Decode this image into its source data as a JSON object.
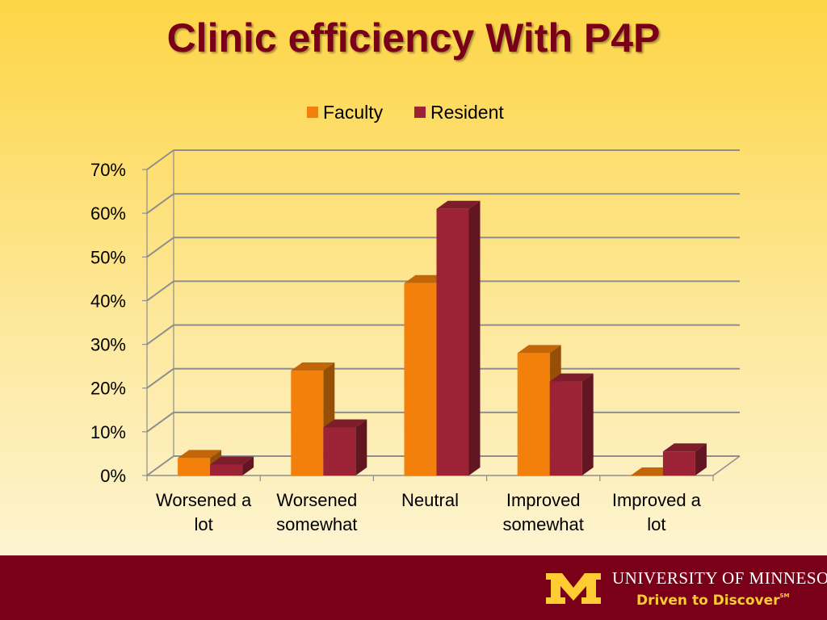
{
  "slide": {
    "footer": {
      "university_name": "UNIVERSITY OF MINNESOTA",
      "tagline": "Driven to Discover",
      "tagline_mark": "SM",
      "bar_color": "#7a0019",
      "logo_color": "#ffcc33"
    }
  },
  "chart_data": {
    "type": "bar",
    "title": "Clinic efficiency With P4P",
    "categories": [
      "Worsened a lot",
      "Worsened somewhat",
      "Neutral",
      "Improved somewhat",
      "Improved a lot"
    ],
    "series": [
      {
        "name": "Faculty",
        "values": [
          4,
          24,
          44,
          28,
          0
        ],
        "color": "#f2800a"
      },
      {
        "name": "Resident",
        "values": [
          2.5,
          11,
          61,
          21.5,
          5.5
        ],
        "color": "#9c2335"
      }
    ],
    "y_ticks": [
      "0%",
      "10%",
      "20%",
      "30%",
      "40%",
      "50%",
      "60%",
      "70%"
    ],
    "ylim": [
      0,
      70
    ],
    "grid": true,
    "legend": "top",
    "style": "3d"
  }
}
